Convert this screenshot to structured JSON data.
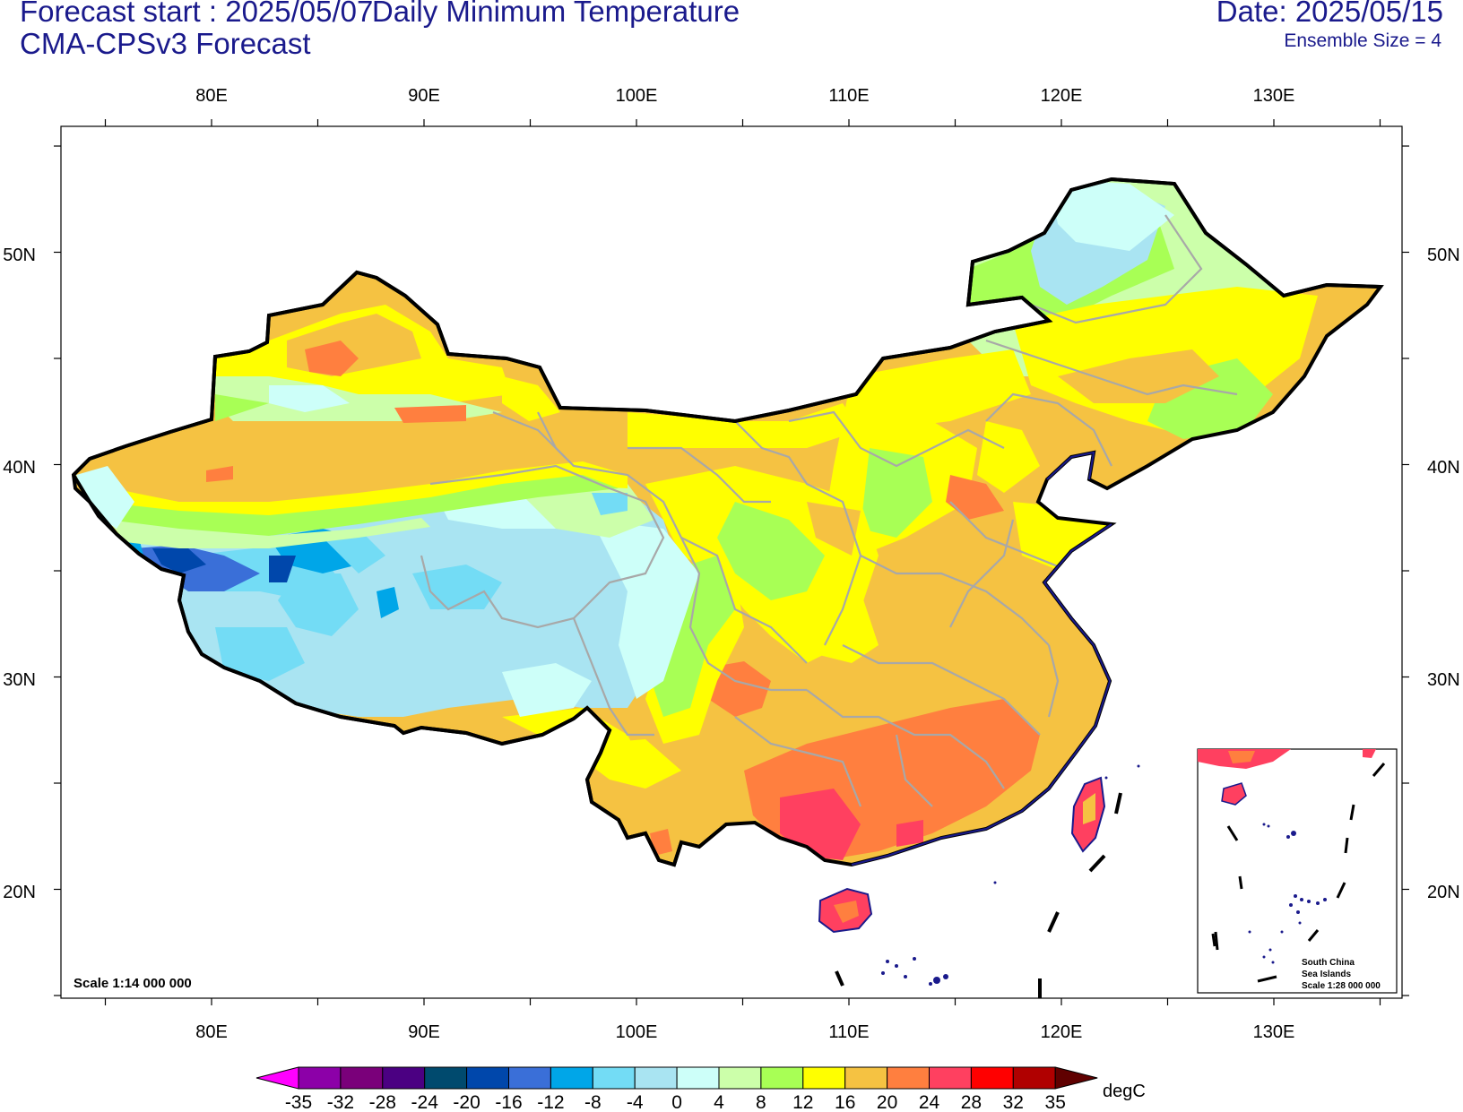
{
  "titles": {
    "forecast_start": "Forecast start : 2025/05/07",
    "model": "CMA-CPSv3 Forecast",
    "main": "Daily Minimum Temperature",
    "date": "Date: 2025/05/15",
    "ensemble": "Ensemble Size = 4"
  },
  "lon_labels": [
    "80E",
    "90E",
    "100E",
    "110E",
    "120E",
    "130E"
  ],
  "lat_labels": [
    "50N",
    "40N",
    "30N",
    "20N"
  ],
  "scale_label": "Scale 1:14 000 000",
  "inset": {
    "line1": "South China",
    "line2": "Sea Islands",
    "line3": "Scale 1:28 000 000"
  },
  "colorbar": {
    "unit": "degC",
    "ticks": [
      "-35",
      "-32",
      "-28",
      "-24",
      "-20",
      "-16",
      "-12",
      "-8",
      "-4",
      "0",
      "4",
      "8",
      "12",
      "16",
      "20",
      "24",
      "28",
      "32",
      "35"
    ],
    "colors": [
      "#ff00ff",
      "#8c00a8",
      "#7a007a",
      "#4b0082",
      "#004a6e",
      "#0047ab",
      "#3a6fd8",
      "#00a6e8",
      "#73dcf5",
      "#a9e4f2",
      "#cdfff9",
      "#ccffaa",
      "#a8ff55",
      "#ffff00",
      "#f5c242",
      "#ff7f3f",
      "#ff4060",
      "#ff0000",
      "#b00000",
      "#600000"
    ]
  }
}
